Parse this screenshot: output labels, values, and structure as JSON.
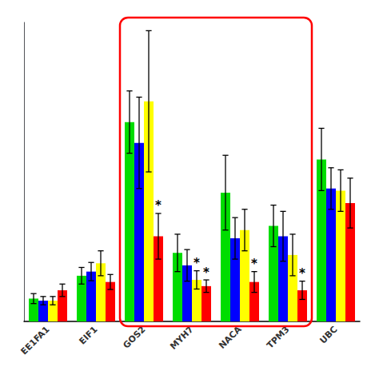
{
  "chart_data": {
    "type": "bar",
    "categories": [
      "EE1FA1",
      "EIF1",
      "GOS2",
      "MYH7",
      "NACA",
      "TPM3",
      "UBC"
    ],
    "series": [
      {
        "color": "#00dd00",
        "values": [
          0.055,
          0.11,
          0.48,
          0.165,
          0.31,
          0.23,
          0.39
        ],
        "errors": [
          0.012,
          0.02,
          0.075,
          0.045,
          0.09,
          0.05,
          0.075
        ]
      },
      {
        "color": "#0000ff",
        "values": [
          0.05,
          0.12,
          0.43,
          0.135,
          0.2,
          0.205,
          0.32
        ],
        "errors": [
          0.01,
          0.022,
          0.11,
          0.038,
          0.05,
          0.06,
          0.05
        ]
      },
      {
        "color": "#ffff00",
        "values": [
          0.05,
          0.14,
          0.53,
          0.1,
          0.22,
          0.16,
          0.315
        ],
        "errors": [
          0.01,
          0.03,
          0.17,
          0.022,
          0.05,
          0.05,
          0.05
        ]
      },
      {
        "color": "#ff0000",
        "values": [
          0.075,
          0.095,
          0.205,
          0.085,
          0.095,
          0.075,
          0.285
        ],
        "errors": [
          0.015,
          0.018,
          0.055,
          0.015,
          0.025,
          0.022,
          0.06
        ]
      }
    ],
    "ylim": [
      0,
      0.72
    ],
    "grid": false,
    "tick_labels": "x",
    "annotations": [
      {
        "text": "*",
        "category": "GOS2",
        "series": 3
      },
      {
        "text": "*",
        "category": "MYH7",
        "series": 2
      },
      {
        "text": "*",
        "category": "MYH7",
        "series": 3
      },
      {
        "text": "*",
        "category": "NACA",
        "series": 3
      },
      {
        "text": "*",
        "category": "TPM3",
        "series": 3
      },
      {
        "type": "box",
        "from": "GOS2",
        "to": "TPM3",
        "color": "#ff0000"
      }
    ]
  }
}
